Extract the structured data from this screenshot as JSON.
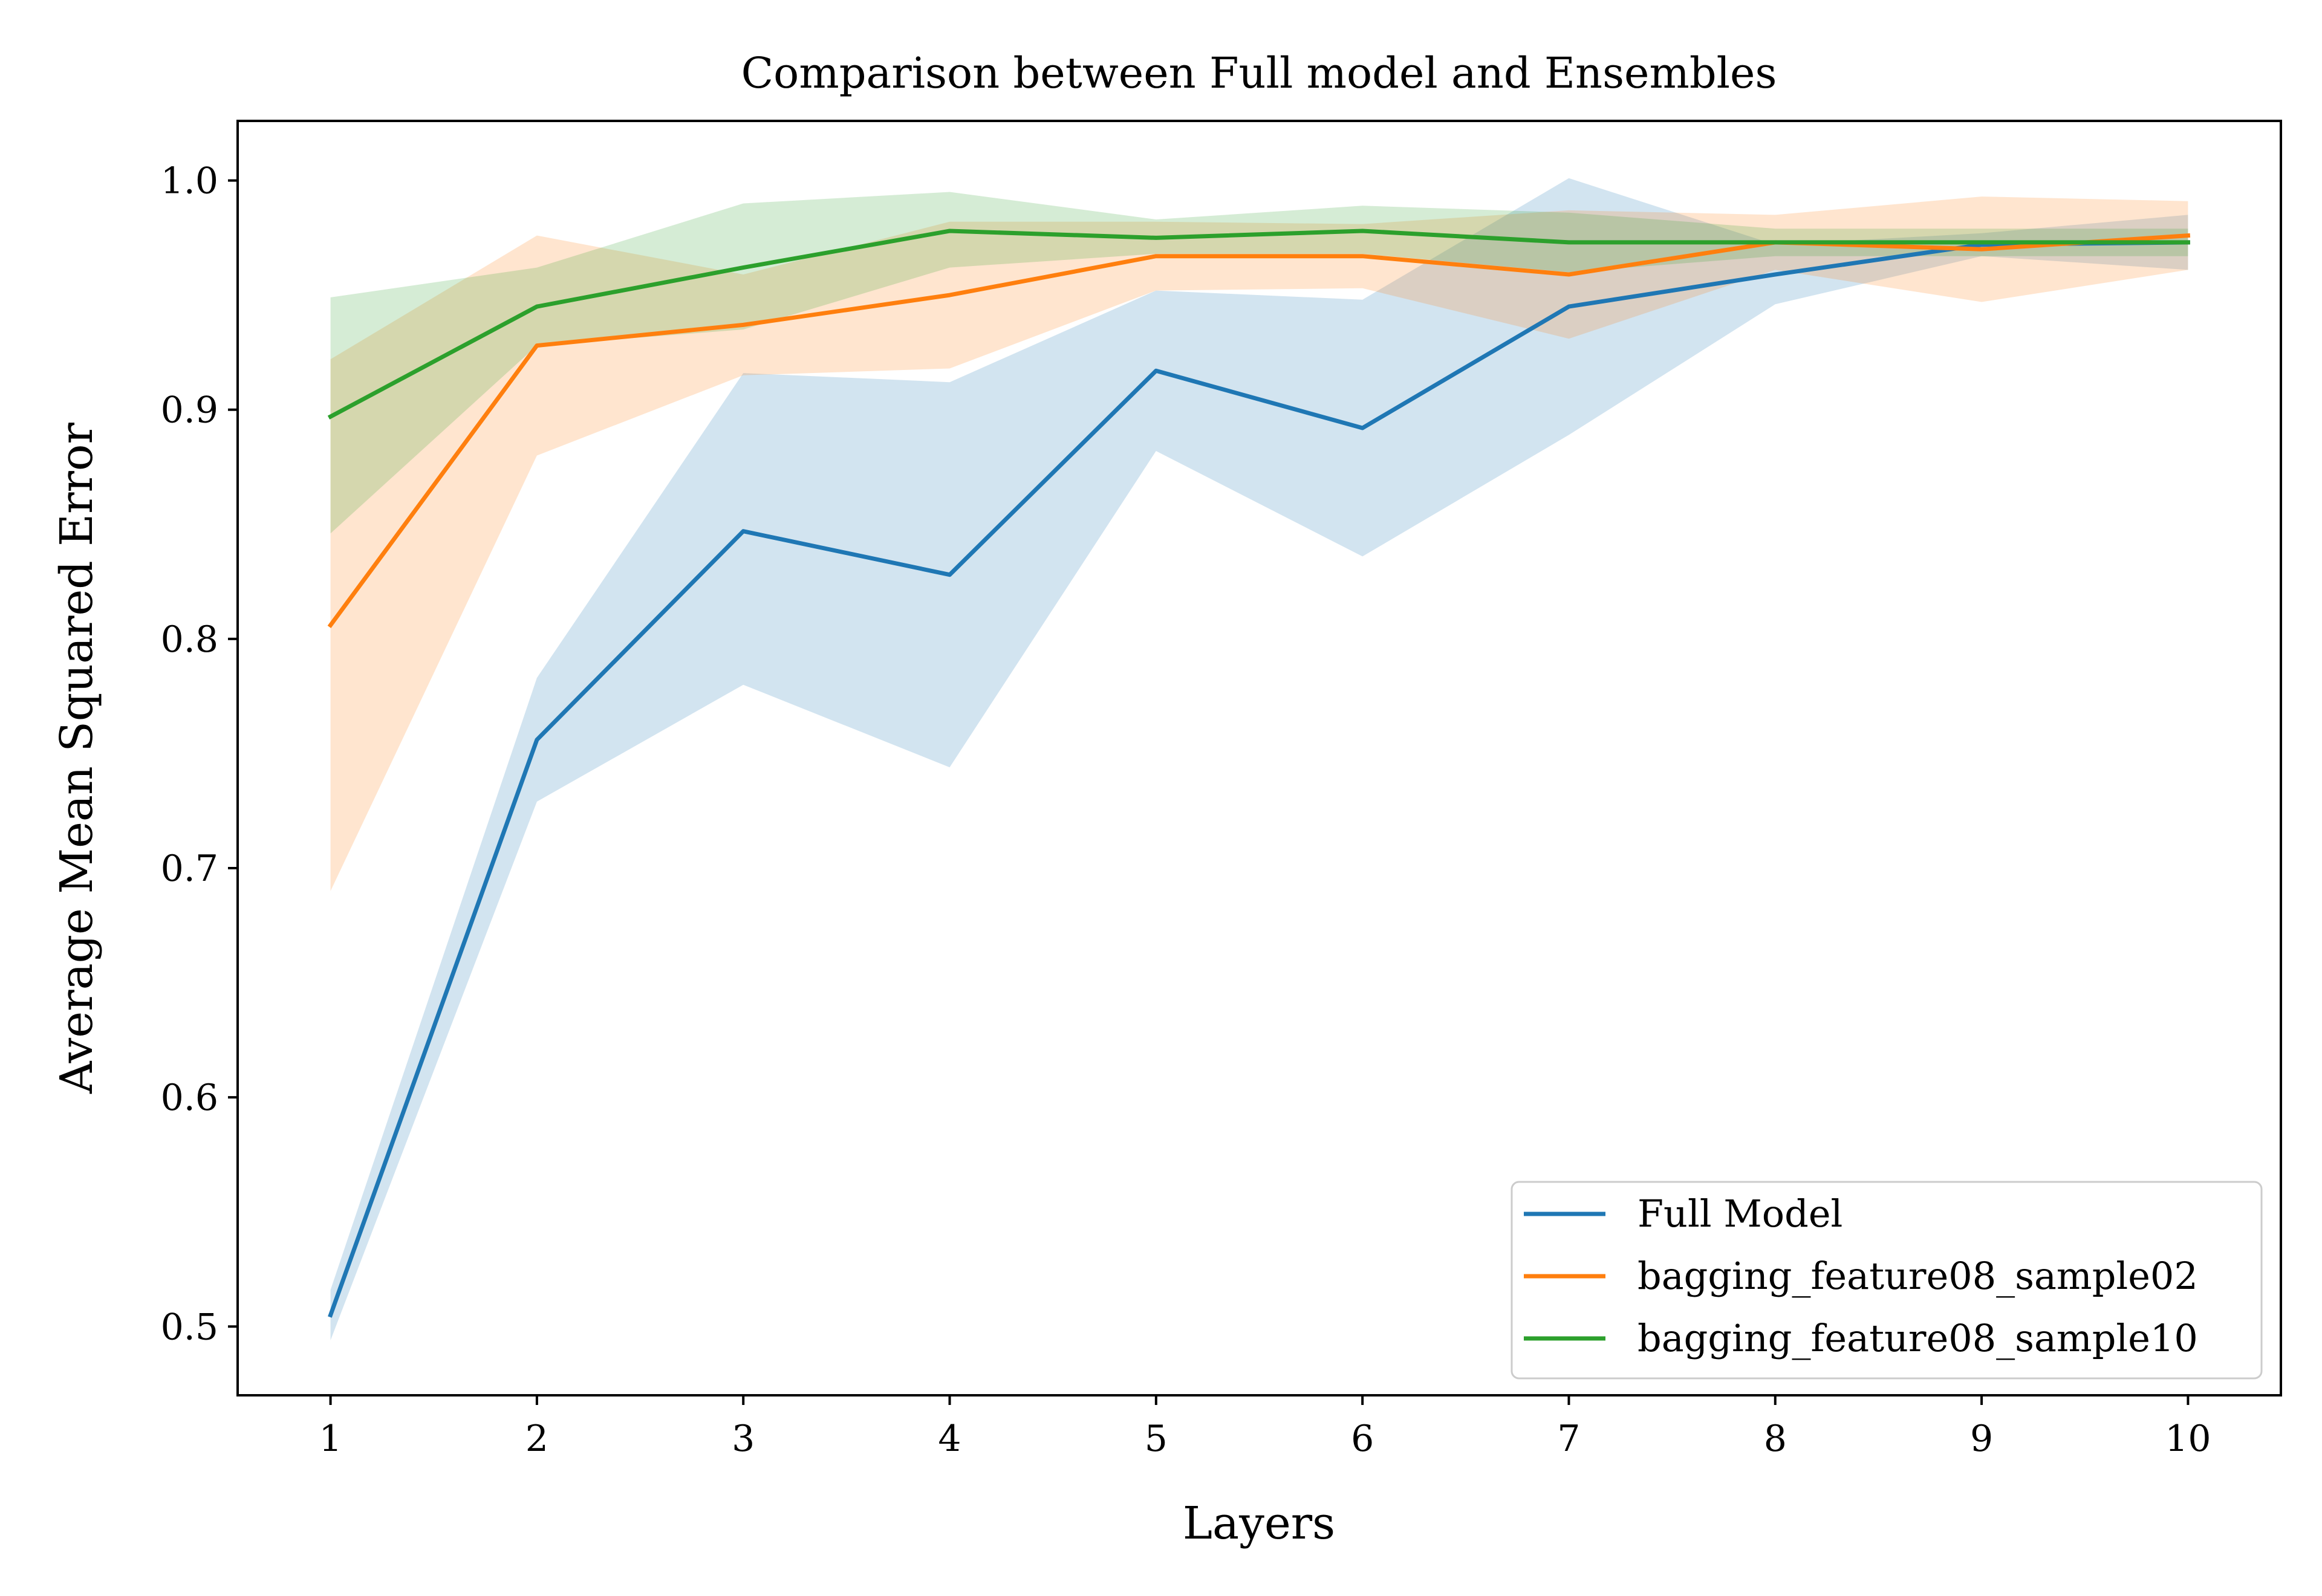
{
  "chart_data": {
    "type": "line",
    "title": "Comparison between Full model and Ensembles",
    "xlabel": "Layers",
    "ylabel": "Average Mean Squared Error",
    "x": [
      1,
      2,
      3,
      4,
      5,
      6,
      7,
      8,
      9,
      10
    ],
    "xlim": [
      0.55,
      10.45
    ],
    "ylim": [
      0.47,
      1.026
    ],
    "xticks": [
      1,
      2,
      3,
      4,
      5,
      6,
      7,
      8,
      9,
      10
    ],
    "xtick_labels": [
      "1",
      "2",
      "3",
      "4",
      "5",
      "6",
      "7",
      "8",
      "9",
      "10"
    ],
    "yticks": [
      0.5,
      0.6,
      0.7,
      0.8,
      0.9,
      1.0
    ],
    "ytick_labels": [
      "0.5",
      "0.6",
      "0.7",
      "0.8",
      "0.9",
      "1.0"
    ],
    "grid": false,
    "legend_position": "lower-right",
    "series": [
      {
        "name": "Full Model",
        "color": "#1f77b4",
        "values": [
          0.505,
          0.756,
          0.847,
          0.828,
          0.917,
          0.892,
          0.945,
          0.959,
          0.972,
          0.973
        ],
        "lower": [
          0.494,
          0.729,
          0.78,
          0.744,
          0.882,
          0.836,
          0.889,
          0.946,
          0.967,
          0.961
        ],
        "upper": [
          0.516,
          0.783,
          0.916,
          0.912,
          0.952,
          0.948,
          1.001,
          0.972,
          0.977,
          0.985
        ]
      },
      {
        "name": "bagging_feature08_sample02",
        "color": "#ff7f0e",
        "values": [
          0.806,
          0.928,
          0.937,
          0.95,
          0.967,
          0.967,
          0.959,
          0.973,
          0.97,
          0.976
        ],
        "lower": [
          0.69,
          0.88,
          0.915,
          0.918,
          0.952,
          0.953,
          0.931,
          0.961,
          0.947,
          0.961
        ],
        "upper": [
          0.922,
          0.976,
          0.959,
          0.982,
          0.982,
          0.981,
          0.987,
          0.985,
          0.993,
          0.991
        ]
      },
      {
        "name": "bagging_feature08_sample10",
        "color": "#2ca02c",
        "values": [
          0.897,
          0.945,
          0.962,
          0.978,
          0.975,
          0.978,
          0.973,
          0.973,
          0.973,
          0.973
        ],
        "lower": [
          0.846,
          0.928,
          0.935,
          0.962,
          0.968,
          0.968,
          0.96,
          0.967,
          0.967,
          0.967
        ],
        "upper": [
          0.949,
          0.962,
          0.99,
          0.995,
          0.983,
          0.989,
          0.986,
          0.979,
          0.979,
          0.979
        ]
      }
    ]
  }
}
